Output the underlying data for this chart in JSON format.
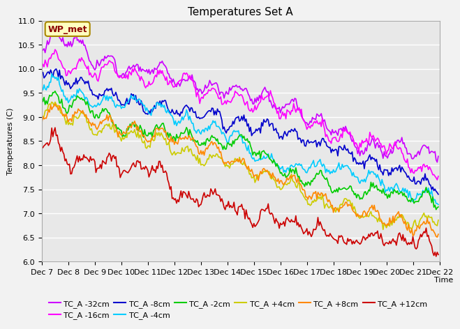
{
  "title": "Temperatures Set A",
  "xlabel": "Time",
  "ylabel": "Temperatures (C)",
  "ylim": [
    6.0,
    11.0
  ],
  "xlim": [
    0,
    360
  ],
  "x_tick_labels": [
    "Dec 7",
    "Dec 8",
    "Dec 9",
    "Dec 10",
    "Dec 11",
    "Dec 12",
    "Dec 13",
    "Dec 14",
    "Dec 15",
    "Dec 16",
    "Dec 17",
    "Dec 18",
    "Dec 19",
    "Dec 20",
    "Dec 21",
    "Dec 22"
  ],
  "x_tick_positions": [
    0,
    24,
    48,
    72,
    96,
    120,
    144,
    168,
    192,
    216,
    240,
    264,
    288,
    312,
    336,
    360
  ],
  "n_points": 360,
  "series": [
    {
      "label": "TC_A -32cm",
      "color": "#CC00FF",
      "start": 10.52,
      "end": 8.25,
      "noise_scale": 0.07,
      "hf_scale": 0.04
    },
    {
      "label": "TC_A -16cm",
      "color": "#FF00FF",
      "start": 10.18,
      "end": 7.82,
      "noise_scale": 0.07,
      "hf_scale": 0.04
    },
    {
      "label": "TC_A -8cm",
      "color": "#0000CC",
      "start": 10.0,
      "end": 7.52,
      "noise_scale": 0.06,
      "hf_scale": 0.04
    },
    {
      "label": "TC_A -4cm",
      "color": "#00CCFF",
      "start": 9.73,
      "end": 7.3,
      "noise_scale": 0.06,
      "hf_scale": 0.04
    },
    {
      "label": "TC_A -2cm",
      "color": "#00CC00",
      "start": 9.55,
      "end": 7.18,
      "noise_scale": 0.06,
      "hf_scale": 0.04
    },
    {
      "label": "TC_A +4cm",
      "color": "#CCCC00",
      "start": 9.2,
      "end": 6.88,
      "noise_scale": 0.06,
      "hf_scale": 0.04
    },
    {
      "label": "TC_A +8cm",
      "color": "#FF8800",
      "start": 9.05,
      "end": 6.62,
      "noise_scale": 0.07,
      "hf_scale": 0.04
    },
    {
      "label": "TC_A +12cm",
      "color": "#CC0000",
      "start": 8.55,
      "end": 6.22,
      "noise_scale": 0.08,
      "hf_scale": 0.05
    }
  ],
  "annotation_text": "WP_met",
  "annotation_bg": "#FFFFC0",
  "annotation_border": "#AA8800",
  "fig_bg_color": "#F2F2F2",
  "plot_bg_color": "#E8E8E8",
  "grid_color": "#FFFFFF",
  "title_fontsize": 11,
  "axis_fontsize": 8,
  "tick_fontsize": 8,
  "legend_fontsize": 8
}
